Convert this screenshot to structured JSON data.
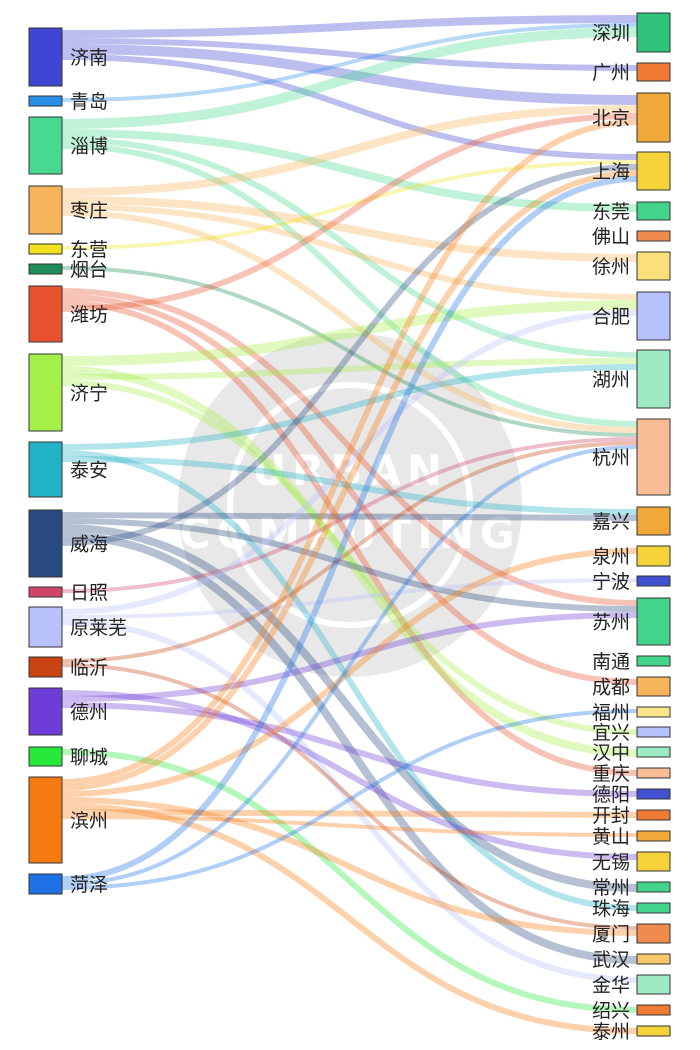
{
  "colors": {
    "济南": "#3f46d4",
    "青岛": "#2a8fe8",
    "淄博": "#47d98f",
    "枣庄": "#f7b35a",
    "东营": "#f2e11f",
    "烟台": "#1f8c5a",
    "潍坊": "#e8522e",
    "济宁": "#a4ef49",
    "泰安": "#22b2c6",
    "威海": "#2a4a82",
    "日照": "#cf4668",
    "原莱芜": "#b8c1fc",
    "临沂": "#c94412",
    "德州": "#6e3cd6",
    "聊城": "#27e83b",
    "滨州": "#f67a12",
    "菏泽": "#1e72e6",
    "深圳": "#2fc27a",
    "广州": "#ef7a34",
    "北京": "#f0a839",
    "上海": "#f6d23a",
    "东莞": "#43d48b",
    "佛山": "#ef8b4e",
    "徐州": "#fbe07a",
    "合肥": "#b6c0fb",
    "湖州": "#9fe9c3",
    "杭州": "#f8bc96",
    "嘉兴": "#f0a839",
    "泉州": "#f6d23a",
    "宁波": "#4250d2",
    "苏州": "#43d48b",
    "南通": "#43d48b",
    "成都": "#f7b35a",
    "福州": "#fbe58a",
    "宜兴": "#b6c0fb",
    "汉中": "#9fe9c3",
    "重庆": "#f8bc96",
    "德阳": "#4250d2",
    "开封": "#ef7a34",
    "黄山": "#f0a839",
    "无锡": "#f6d23a",
    "常州": "#43d48b",
    "珠海": "#43d48b",
    "厦门": "#ef8b4e",
    "武汉": "#f7c86a",
    "金华": "#9fe9c3",
    "绍兴": "#ef7a34",
    "泰州": "#f6d23a"
  },
  "diagram": {
    "sources": [
      "济南",
      "青岛",
      "淄博",
      "枣庄",
      "东营",
      "烟台",
      "潍坊",
      "济宁",
      "泰安",
      "威海",
      "日照",
      "原莱芜",
      "临沂",
      "德州",
      "聊城",
      "滨州",
      "菏泽"
    ],
    "targets": [
      "深圳",
      "广州",
      "北京",
      "上海",
      "东莞",
      "佛山",
      "徐州",
      "合肥",
      "湖州",
      "杭州",
      "嘉兴",
      "泉州",
      "宁波",
      "苏州",
      "南通",
      "成都",
      "福州",
      "宜兴",
      "汉中",
      "重庆",
      "德阳",
      "开封",
      "黄山",
      "无锡",
      "常州",
      "珠海",
      "厦门",
      "武汉",
      "金华",
      "绍兴",
      "泰州"
    ],
    "links": [
      {
        "source": "济南",
        "target": "深圳",
        "value": 8
      },
      {
        "source": "济南",
        "target": "广州",
        "value": 6
      },
      {
        "source": "济南",
        "target": "北京",
        "value": 10
      },
      {
        "source": "济南",
        "target": "上海",
        "value": 6
      },
      {
        "source": "青岛",
        "target": "深圳",
        "value": 4
      },
      {
        "source": "淄博",
        "target": "深圳",
        "value": 10
      },
      {
        "source": "淄博",
        "target": "东莞",
        "value": 8
      },
      {
        "source": "淄博",
        "target": "湖州",
        "value": 6
      },
      {
        "source": "淄博",
        "target": "杭州",
        "value": 6
      },
      {
        "source": "枣庄",
        "target": "北京",
        "value": 8
      },
      {
        "source": "枣庄",
        "target": "徐州",
        "value": 8
      },
      {
        "source": "枣庄",
        "target": "合肥",
        "value": 6
      },
      {
        "source": "枣庄",
        "target": "杭州",
        "value": 6
      },
      {
        "source": "东营",
        "target": "上海",
        "value": 4
      },
      {
        "source": "烟台",
        "target": "杭州",
        "value": 4
      },
      {
        "source": "潍坊",
        "target": "苏州",
        "value": 6
      },
      {
        "source": "潍坊",
        "target": "成都",
        "value": 6
      },
      {
        "source": "潍坊",
        "target": "重庆",
        "value": 6
      },
      {
        "source": "潍坊",
        "target": "北京",
        "value": 6
      },
      {
        "source": "济宁",
        "target": "合肥",
        "value": 10
      },
      {
        "source": "济宁",
        "target": "汉中",
        "value": 8
      },
      {
        "source": "济宁",
        "target": "湖州",
        "value": 6
      },
      {
        "source": "济宁",
        "target": "宜兴",
        "value": 6
      },
      {
        "source": "泰安",
        "target": "湖州",
        "value": 6
      },
      {
        "source": "泰安",
        "target": "珠海",
        "value": 6
      },
      {
        "source": "泰安",
        "target": "嘉兴",
        "value": 6
      },
      {
        "source": "威海",
        "target": "嘉兴",
        "value": 6
      },
      {
        "source": "威海",
        "target": "苏州",
        "value": 6
      },
      {
        "source": "威海",
        "target": "常州",
        "value": 8
      },
      {
        "source": "威海",
        "target": "武汉",
        "value": 8
      },
      {
        "source": "威海",
        "target": "上海",
        "value": 6
      },
      {
        "source": "日照",
        "target": "杭州",
        "value": 4
      },
      {
        "source": "原莱芜",
        "target": "合肥",
        "value": 6
      },
      {
        "source": "原莱芜",
        "target": "宁波",
        "value": 4
      },
      {
        "source": "原莱芜",
        "target": "金华",
        "value": 6
      },
      {
        "source": "临沂",
        "target": "杭州",
        "value": 4
      },
      {
        "source": "临沂",
        "target": "厦门",
        "value": 4
      },
      {
        "source": "德州",
        "target": "无锡",
        "value": 6
      },
      {
        "source": "德州",
        "target": "苏州",
        "value": 6
      },
      {
        "source": "德州",
        "target": "德阳",
        "value": 6
      },
      {
        "source": "聊城",
        "target": "绍兴",
        "value": 6
      },
      {
        "source": "滨州",
        "target": "北京",
        "value": 6
      },
      {
        "source": "滨州",
        "target": "上海",
        "value": 6
      },
      {
        "source": "滨州",
        "target": "泉州",
        "value": 6
      },
      {
        "source": "滨州",
        "target": "厦门",
        "value": 6
      },
      {
        "source": "滨州",
        "target": "泰州",
        "value": 6
      },
      {
        "source": "滨州",
        "target": "开封",
        "value": 6
      },
      {
        "source": "滨州",
        "target": "黄山",
        "value": 4
      },
      {
        "source": "菏泽",
        "target": "上海",
        "value": 6
      },
      {
        "source": "菏泽",
        "target": "杭州",
        "value": 4
      },
      {
        "source": "菏泽",
        "target": "福州",
        "value": 4
      }
    ]
  }
}
